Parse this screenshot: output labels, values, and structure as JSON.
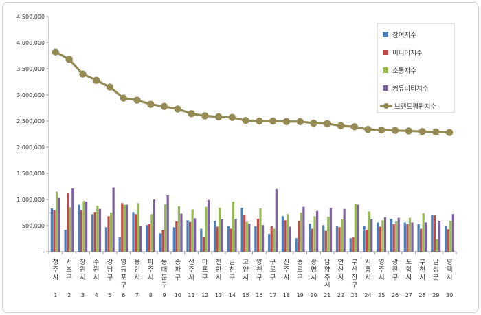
{
  "chart_data": {
    "type": "bar",
    "ylim": [
      0,
      4500000
    ],
    "yticks": [
      "-",
      "500,000",
      "1,000,000",
      "1,500,000",
      "2,000,000",
      "2,500,000",
      "3,000,000",
      "3,500,000",
      "4,000,000",
      "4,500,000"
    ],
    "grid": false,
    "legend_position": "right",
    "categories": [
      "청주시",
      "서초구",
      "창원시",
      "수원시",
      "강남구",
      "영등포구",
      "용인시",
      "파주시",
      "동대문구",
      "송파구",
      "전주시",
      "마포구",
      "천안시",
      "금천구",
      "고양시",
      "양천구",
      "구로구",
      "진주시",
      "종로구",
      "광명시",
      "남양주시",
      "안산시",
      "부산진구",
      "시흥시",
      "영주시",
      "광진구",
      "포항시",
      "부천시",
      "달성군",
      "평택시"
    ],
    "ranks": [
      "1",
      "2",
      "3",
      "4",
      "5",
      "6",
      "7",
      "8",
      "9",
      "10",
      "11",
      "12",
      "13",
      "14",
      "15",
      "16",
      "17",
      "18",
      "19",
      "20",
      "21",
      "22",
      "23",
      "24",
      "25",
      "26",
      "27",
      "28",
      "29",
      "30"
    ],
    "series": [
      {
        "name": "참여지수",
        "kind": "bar",
        "color": "#4a7ebb",
        "values": [
          830000,
          420000,
          900000,
          720000,
          470000,
          280000,
          760000,
          510000,
          350000,
          470000,
          600000,
          440000,
          590000,
          490000,
          840000,
          490000,
          340000,
          680000,
          260000,
          540000,
          510000,
          500000,
          260000,
          500000,
          560000,
          630000,
          560000,
          530000,
          710000,
          500000
        ]
      },
      {
        "name": "미디어지수",
        "kind": "bar",
        "color": "#be4b48",
        "values": [
          790000,
          1130000,
          800000,
          760000,
          680000,
          930000,
          720000,
          530000,
          410000,
          580000,
          570000,
          290000,
          480000,
          440000,
          710000,
          630000,
          490000,
          600000,
          590000,
          440000,
          400000,
          470000,
          280000,
          420000,
          480000,
          530000,
          530000,
          440000,
          700000,
          430000
        ]
      },
      {
        "name": "소통지수",
        "kind": "bar",
        "color": "#98b954",
        "values": [
          1150000,
          850000,
          970000,
          880000,
          750000,
          900000,
          930000,
          720000,
          910000,
          870000,
          810000,
          860000,
          840000,
          960000,
          570000,
          830000,
          440000,
          720000,
          750000,
          680000,
          670000,
          620000,
          920000,
          770000,
          600000,
          580000,
          650000,
          740000,
          240000,
          590000
        ]
      },
      {
        "name": "커뮤니티지수",
        "kind": "bar",
        "color": "#7d60a0",
        "values": [
          1030000,
          1210000,
          960000,
          820000,
          1230000,
          900000,
          500000,
          1000000,
          1080000,
          730000,
          640000,
          990000,
          620000,
          630000,
          540000,
          510000,
          1200000,
          480000,
          860000,
          780000,
          840000,
          820000,
          900000,
          620000,
          660000,
          650000,
          560000,
          560000,
          590000,
          720000
        ]
      },
      {
        "name": "브랜드평판지수",
        "kind": "line",
        "color": "#948a54",
        "values": [
          3820000,
          3680000,
          3400000,
          3280000,
          3150000,
          2940000,
          2900000,
          2820000,
          2780000,
          2730000,
          2640000,
          2600000,
          2580000,
          2570000,
          2510000,
          2500000,
          2500000,
          2490000,
          2490000,
          2460000,
          2450000,
          2410000,
          2390000,
          2340000,
          2330000,
          2320000,
          2310000,
          2300000,
          2290000,
          2280000
        ]
      }
    ]
  }
}
